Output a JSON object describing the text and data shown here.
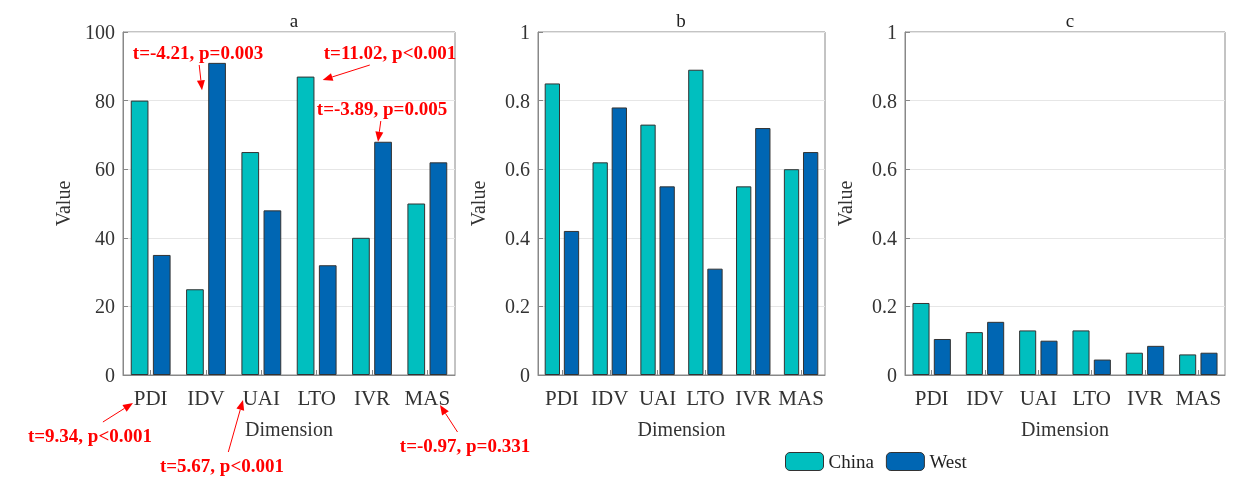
{
  "chart_data": [
    {
      "type": "bar",
      "title": "a",
      "xlabel": "Dimension",
      "ylabel": "Value",
      "categories": [
        "PDI",
        "IDV",
        "UAI",
        "LTO",
        "IVR",
        "MAS"
      ],
      "series": [
        {
          "color": "#00bfbf",
          "values": [
            80,
            25,
            65,
            87,
            40,
            50
          ]
        },
        {
          "color": "#0066b3",
          "values": [
            35,
            91,
            48,
            32,
            68,
            62
          ]
        }
      ],
      "ylim": [
        0,
        100
      ],
      "yticks": [
        0,
        20,
        40,
        60,
        80,
        100
      ],
      "grid": "y",
      "legend": false,
      "annotations": [
        "t=9.34, p<0.001",
        {
          "text": "t=-4.21, p=0.003",
          "x": "IDV",
          "y": 83
        },
        "t=5.67, p<0.001",
        {
          "text": "t=11.02, p<0.001",
          "x": "LTO",
          "y": 86
        },
        {
          "text": "t=-3.89, p=0.005",
          "x": "IVR",
          "y": 68
        },
        "t=-0.97, p=0.331"
      ]
    },
    {
      "type": "bar",
      "title": "b",
      "xlabel": "Dimension",
      "ylabel": "Value",
      "categories": [
        "PDI",
        "IDV",
        "UAI",
        "LTO",
        "IVR",
        "MAS"
      ],
      "series": [
        {
          "color": "#00bfbf",
          "values": [
            0.85,
            0.62,
            0.73,
            0.89,
            0.55,
            0.6
          ]
        },
        {
          "color": "#0066b3",
          "values": [
            0.42,
            0.78,
            0.55,
            0.31,
            0.72,
            0.65
          ]
        }
      ],
      "ylim": [
        0,
        1
      ],
      "yticks": [
        0,
        0.2,
        0.4,
        0.6,
        0.8,
        1
      ],
      "grid": "y",
      "legend": false
    },
    {
      "type": "bar",
      "title": "c",
      "xlabel": "Dimension",
      "ylabel": "Value",
      "categories": [
        "PDI",
        "IDV",
        "UAI",
        "LTO",
        "IVR",
        "MAS"
      ],
      "series": [
        {
          "name": "China",
          "color": "#00bfbf",
          "values": [
            0.21,
            0.125,
            0.13,
            0.13,
            0.065,
            0.06
          ]
        },
        {
          "name": "West",
          "color": "#0066b3",
          "values": [
            0.105,
            0.155,
            0.1,
            0.045,
            0.085,
            0.065
          ]
        }
      ],
      "ylim": [
        0,
        1
      ],
      "yticks": [
        0,
        0.2,
        0.4,
        0.6,
        0.8,
        1
      ],
      "grid": "y",
      "legend": "bottom left"
    }
  ]
}
